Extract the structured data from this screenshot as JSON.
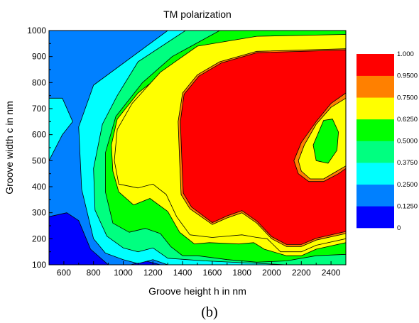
{
  "chart_data": {
    "type": "contour",
    "title": "TM polarization",
    "xlabel": "Groove height h in nm",
    "ylabel": "Groove width c in nm",
    "caption": "(b)",
    "xlim": [
      500,
      2500
    ],
    "ylim": [
      100,
      1000
    ],
    "xticks": [
      600,
      800,
      1000,
      1200,
      1400,
      1600,
      1800,
      2000,
      2200,
      2400
    ],
    "yticks": [
      100,
      200,
      300,
      400,
      500,
      600,
      700,
      800,
      900,
      1000
    ],
    "legend_position": "right",
    "levels": [
      0,
      0.125,
      0.25,
      0.375,
      0.5,
      0.625,
      0.75,
      0.95,
      1.0
    ],
    "level_labels": [
      "0",
      "0.1250",
      "0.2500",
      "0.3750",
      "0.5000",
      "0.6250",
      "0.7500",
      "0.9500",
      "1.000"
    ],
    "level_colors": [
      "#0000ff",
      "#0080ff",
      "#00ffff",
      "#00ff80",
      "#00ff00",
      "#ffff00",
      "#ff8000",
      "#ff0000"
    ],
    "regions": [
      {
        "level": 1,
        "points": [
          [
            500,
            1000
          ],
          [
            2500,
            1000
          ],
          [
            2500,
            100
          ],
          [
            500,
            100
          ]
        ]
      },
      {
        "level": 0,
        "points": [
          [
            500,
            1000
          ],
          [
            1300,
            1000
          ],
          [
            1700,
            990
          ],
          [
            1700,
            1000
          ],
          [
            500,
            1000
          ]
        ]
      },
      {
        "level": 0,
        "points": [
          [
            500,
            285
          ],
          [
            620,
            300
          ],
          [
            700,
            270
          ],
          [
            780,
            160
          ],
          [
            860,
            120
          ],
          [
            900,
            100
          ],
          [
            500,
            100
          ]
        ]
      },
      {
        "level": 0,
        "points": [
          [
            1050,
            100
          ],
          [
            1150,
            115
          ],
          [
            1250,
            100
          ]
        ]
      },
      {
        "level": 2,
        "points": [
          [
            500,
            740
          ],
          [
            590,
            740
          ],
          [
            660,
            650
          ],
          [
            590,
            600
          ],
          [
            500,
            500
          ]
        ]
      },
      {
        "level": 2,
        "points": [
          [
            1300,
            1000
          ],
          [
            800,
            790
          ],
          [
            700,
            630
          ],
          [
            720,
            390
          ],
          [
            800,
            200
          ],
          [
            880,
            145
          ],
          [
            1000,
            120
          ],
          [
            1100,
            105
          ],
          [
            1200,
            120
          ],
          [
            1300,
            100
          ],
          [
            2500,
            100
          ],
          [
            2500,
            1000
          ]
        ]
      },
      {
        "level": 3,
        "points": [
          [
            1420,
            1000
          ],
          [
            1100,
            880
          ],
          [
            960,
            750
          ],
          [
            860,
            640
          ],
          [
            800,
            470
          ],
          [
            810,
            310
          ],
          [
            890,
            210
          ],
          [
            1000,
            165
          ],
          [
            1100,
            150
          ],
          [
            1200,
            165
          ],
          [
            1300,
            125
          ],
          [
            1550,
            115
          ],
          [
            2100,
            100
          ],
          [
            2500,
            100
          ],
          [
            2500,
            1000
          ]
        ]
      },
      {
        "level": 4,
        "points": [
          [
            1650,
            1000
          ],
          [
            1330,
            900
          ],
          [
            1130,
            800
          ],
          [
            950,
            670
          ],
          [
            880,
            530
          ],
          [
            880,
            380
          ],
          [
            930,
            260
          ],
          [
            1040,
            225
          ],
          [
            1150,
            240
          ],
          [
            1250,
            220
          ],
          [
            1320,
            170
          ],
          [
            1400,
            135
          ],
          [
            1500,
            135
          ],
          [
            1700,
            120
          ],
          [
            1900,
            110
          ],
          [
            2100,
            115
          ],
          [
            2300,
            135
          ],
          [
            2500,
            140
          ],
          [
            2500,
            1000
          ]
        ]
      },
      {
        "level": 5,
        "points": [
          [
            2500,
            975
          ],
          [
            1900,
            970
          ],
          [
            1550,
            930
          ],
          [
            1300,
            850
          ],
          [
            1100,
            760
          ],
          [
            960,
            660
          ],
          [
            920,
            560
          ],
          [
            930,
            460
          ],
          [
            970,
            380
          ],
          [
            1070,
            330
          ],
          [
            1180,
            355
          ],
          [
            1300,
            305
          ],
          [
            1380,
            225
          ],
          [
            1480,
            180
          ],
          [
            1580,
            185
          ],
          [
            1780,
            180
          ],
          [
            1880,
            185
          ],
          [
            1950,
            160
          ],
          [
            2100,
            135
          ],
          [
            2200,
            135
          ],
          [
            2300,
            160
          ],
          [
            2500,
            185
          ]
        ]
      },
      {
        "level": 6,
        "points": [
          [
            2500,
            955
          ],
          [
            1900,
            950
          ],
          [
            1600,
            920
          ],
          [
            1350,
            820
          ],
          [
            1190,
            730
          ],
          [
            1050,
            620
          ],
          [
            1000,
            520
          ],
          [
            1000,
            420
          ],
          [
            1100,
            410
          ],
          [
            1200,
            420
          ],
          [
            1270,
            400
          ],
          [
            1310,
            345
          ],
          [
            1400,
            290
          ],
          [
            1500,
            220
          ],
          [
            1600,
            210
          ],
          [
            1800,
            230
          ],
          [
            1900,
            220
          ],
          [
            1980,
            215
          ],
          [
            2060,
            165
          ],
          [
            2150,
            165
          ],
          [
            2300,
            190
          ],
          [
            2500,
            210
          ]
        ]
      },
      {
        "level": 5,
        "points": [
          [
            2500,
            985
          ],
          [
            1900,
            978
          ],
          [
            1500,
            940
          ],
          [
            1250,
            840
          ],
          [
            1060,
            720
          ],
          [
            960,
            620
          ],
          [
            940,
            500
          ],
          [
            970,
            410
          ],
          [
            1100,
            395
          ],
          [
            1200,
            410
          ],
          [
            1290,
            370
          ],
          [
            1360,
            285
          ],
          [
            1450,
            215
          ],
          [
            1600,
            205
          ],
          [
            1800,
            215
          ],
          [
            1900,
            205
          ],
          [
            1970,
            200
          ],
          [
            2060,
            150
          ],
          [
            2200,
            150
          ],
          [
            2300,
            175
          ],
          [
            2500,
            200
          ]
        ]
      },
      {
        "level": 6,
        "points": [
          [
            2500,
            930
          ],
          [
            1900,
            920
          ],
          [
            1650,
            880
          ],
          [
            1500,
            830
          ],
          [
            1400,
            760
          ],
          [
            1370,
            650
          ],
          [
            1380,
            500
          ],
          [
            1390,
            370
          ],
          [
            1450,
            315
          ],
          [
            1600,
            255
          ],
          [
            1700,
            280
          ],
          [
            1800,
            300
          ],
          [
            1900,
            260
          ],
          [
            2000,
            200
          ],
          [
            2100,
            170
          ],
          [
            2200,
            170
          ],
          [
            2300,
            195
          ],
          [
            2500,
            220
          ]
        ]
      },
      {
        "level": 7,
        "points": [
          [
            2500,
            925
          ],
          [
            1900,
            915
          ],
          [
            1660,
            875
          ],
          [
            1510,
            825
          ],
          [
            1410,
            755
          ],
          [
            1385,
            650
          ],
          [
            1395,
            500
          ],
          [
            1405,
            375
          ],
          [
            1460,
            322
          ],
          [
            1600,
            262
          ],
          [
            1700,
            288
          ],
          [
            1800,
            308
          ],
          [
            1900,
            268
          ],
          [
            2000,
            208
          ],
          [
            2100,
            178
          ],
          [
            2200,
            178
          ],
          [
            2300,
            202
          ],
          [
            2500,
            228
          ]
        ]
      },
      {
        "level": 6,
        "points": [
          [
            2500,
            760
          ],
          [
            2400,
            720
          ],
          [
            2300,
            650
          ],
          [
            2200,
            570
          ],
          [
            2150,
            500
          ],
          [
            2180,
            450
          ],
          [
            2250,
            420
          ],
          [
            2350,
            420
          ],
          [
            2450,
            450
          ],
          [
            2500,
            470
          ]
        ]
      },
      {
        "level": 5,
        "points": [
          [
            2500,
            740
          ],
          [
            2400,
            705
          ],
          [
            2300,
            640
          ],
          [
            2220,
            560
          ],
          [
            2180,
            500
          ],
          [
            2200,
            460
          ],
          [
            2260,
            430
          ],
          [
            2350,
            430
          ],
          [
            2440,
            460
          ],
          [
            2500,
            480
          ]
        ]
      },
      {
        "level": 4,
        "points": [
          [
            2350,
            655
          ],
          [
            2410,
            660
          ],
          [
            2450,
            610
          ],
          [
            2440,
            540
          ],
          [
            2380,
            490
          ],
          [
            2300,
            500
          ],
          [
            2280,
            560
          ]
        ]
      }
    ]
  }
}
